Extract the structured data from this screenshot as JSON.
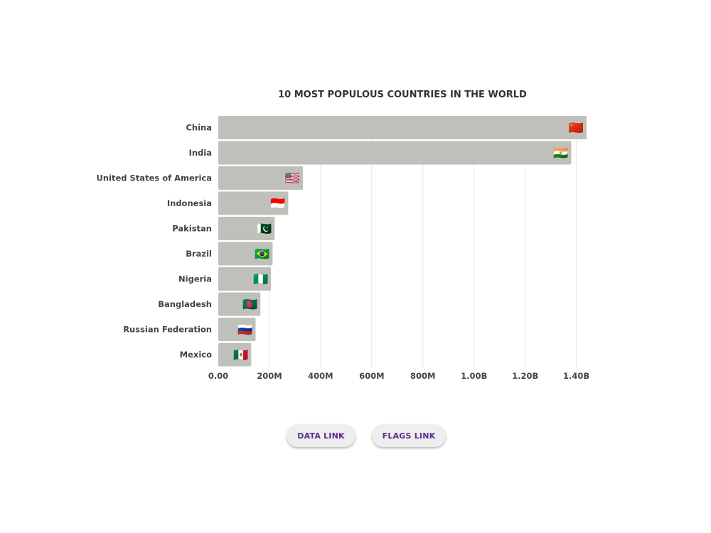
{
  "chart_data": {
    "type": "bar",
    "orientation": "horizontal",
    "title": "10 MOST POPULOUS COUNTRIES IN THE WORLD",
    "categories": [
      "China",
      "India",
      "United States of America",
      "Indonesia",
      "Pakistan",
      "Brazil",
      "Nigeria",
      "Bangladesh",
      "Russian Federation",
      "Mexico"
    ],
    "values": [
      1440000000,
      1380000000,
      331000000,
      273500000,
      220900000,
      212600000,
      206100000,
      164700000,
      145900000,
      128900000
    ],
    "flags": [
      "🇨🇳",
      "🇮🇳",
      "🇺🇸",
      "🇮🇩",
      "🇵🇰",
      "🇧🇷",
      "🇳🇬",
      "🇧🇩",
      "🇷🇺",
      "🇲🇽"
    ],
    "xlim": [
      0,
      1440000000
    ],
    "xticks": [
      0,
      200000000,
      400000000,
      600000000,
      800000000,
      1000000000,
      1200000000,
      1400000000
    ],
    "xtick_labels": [
      "0.00",
      "200M",
      "400M",
      "600M",
      "800M",
      "1.00B",
      "1.20B",
      "1.40B"
    ],
    "grid": "vertical",
    "bar_color": "#c0c0bb"
  },
  "buttons": {
    "data_link": "DATA LINK",
    "flags_link": "FLAGS LINK"
  }
}
